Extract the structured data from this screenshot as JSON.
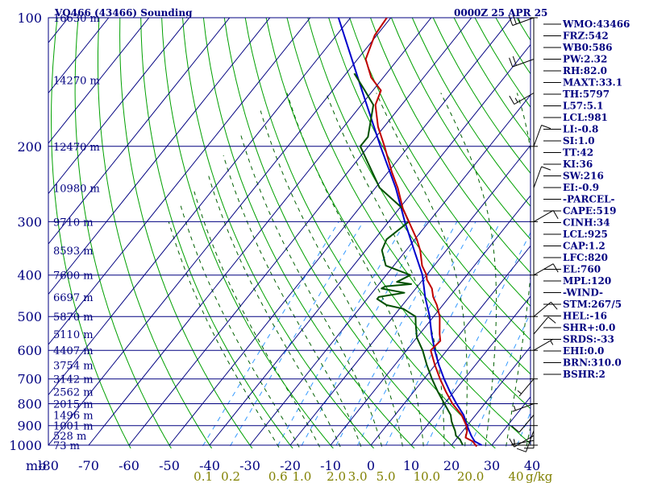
{
  "header": {
    "station": "VQ466 (43466) Sounding",
    "time": "0000Z 25 APR 25"
  },
  "colors": {
    "frame": "#000080",
    "dry_adiabat": "#00a000",
    "moist_adiabat": "#006000",
    "mixing_ratio": "#3399ff",
    "temperature": "#c00000",
    "dewpoint": "#005000",
    "parcel": "#0000cc",
    "mixing_label": "#808000"
  },
  "indices": [
    "WMO:43466",
    "FRZ:542",
    "WB0:586",
    "PW:2.32",
    "RH:82.0",
    "MAXT:33.1",
    "TH:5797",
    "L57:5.1",
    "LCL:981",
    "LI:-0.8",
    "SI:1.0",
    "TT:42",
    "KI:36",
    "SW:216",
    "EI:-0.9",
    "-PARCEL-",
    "CAPE:519",
    "CINH:34",
    "LCL:925",
    "CAP:1.2",
    "LFC:820",
    "EL:760",
    "MPL:120",
    "-WIND-",
    "STM:267/5",
    "HEL:-16",
    "SHR+:0.0",
    "SRDS:-33",
    "EHI:0.0",
    "BRN:310.0",
    "BSHR:2"
  ],
  "chart_data": {
    "type": "line",
    "title": "VQ466 (43466) Sounding",
    "subtitle": "0000Z 25 APR 25",
    "xlabel": "",
    "ylabel": "mb",
    "xlim": [
      -80,
      50
    ],
    "ylim": [
      1000,
      100
    ],
    "y_scale": "log",
    "grid": true,
    "pressure_ticks": [
      100,
      200,
      300,
      400,
      500,
      600,
      700,
      800,
      900,
      1000
    ],
    "pressure_tick_labels": [
      "100",
      "200",
      "300",
      "400",
      "500",
      "600",
      "700",
      "800",
      "900",
      "1000"
    ],
    "temperature_ticks": [
      -80,
      -70,
      -60,
      -50,
      -40,
      -30,
      -20,
      -10,
      0,
      10,
      20,
      30,
      40
    ],
    "temperature_tick_labels": [
      "-80",
      "-70",
      "-60",
      "-50",
      "-40",
      "-30",
      "-20",
      "-10",
      "0",
      "10",
      "20",
      "30",
      "40"
    ],
    "axis_corner_label": "mb",
    "mixing_ratio_ticks": [
      0.1,
      0.2,
      0.6,
      1.0,
      2.0,
      3.0,
      5.0,
      10.0,
      20.0,
      40.0
    ],
    "mixing_ratio_labels": [
      "0.1",
      "0.2",
      "0.6",
      "1.0",
      "2.0",
      "3.0",
      "5.0",
      "10.0",
      "20.0",
      "40"
    ],
    "mixing_ratio_unit": "g/kg",
    "height_labels": [
      {
        "p": 100,
        "label": "16630 m"
      },
      {
        "p": 140,
        "label": "14270 m"
      },
      {
        "p": 200,
        "label": "12470 m"
      },
      {
        "p": 250,
        "label": "10980 m"
      },
      {
        "p": 300,
        "label": "9710 m"
      },
      {
        "p": 350,
        "label": "8593 m"
      },
      {
        "p": 400,
        "label": "7600 m"
      },
      {
        "p": 450,
        "label": "6697 m"
      },
      {
        "p": 500,
        "label": "5870 m"
      },
      {
        "p": 550,
        "label": "5110 m"
      },
      {
        "p": 600,
        "label": "4407 m"
      },
      {
        "p": 650,
        "label": "3754 m"
      },
      {
        "p": 700,
        "label": "3142 m"
      },
      {
        "p": 750,
        "label": "2562 m"
      },
      {
        "p": 800,
        "label": "2015 m"
      },
      {
        "p": 850,
        "label": "1496 m"
      },
      {
        "p": 900,
        "label": "1001 m"
      },
      {
        "p": 950,
        "label": "528 m"
      },
      {
        "p": 1000,
        "label": "73 m"
      }
    ],
    "series": [
      {
        "key": "temperature",
        "p": [
          1007,
          1000,
          980,
          960,
          925,
          900,
          850,
          800,
          750,
          700,
          650,
          600,
          570,
          550,
          500,
          470,
          450,
          430,
          410,
          400,
          380,
          350,
          330,
          300,
          280,
          250,
          230,
          200,
          180,
          160,
          148,
          138,
          125,
          110,
          100
        ],
        "t": [
          26.5,
          26.0,
          24.5,
          22.0,
          21.0,
          19.8,
          16.5,
          12.0,
          8.0,
          4.0,
          0.0,
          -4.0,
          -3.5,
          -5.0,
          -8.5,
          -11.5,
          -14.0,
          -16.0,
          -19.0,
          -20.0,
          -23.0,
          -26.5,
          -29.5,
          -35.0,
          -39.0,
          -44.5,
          -49.0,
          -56.0,
          -61.5,
          -66.5,
          -68.0,
          -73.0,
          -78.0,
          -80.5,
          -81.0
        ]
      },
      {
        "key": "dewpoint",
        "p": [
          1000,
          970,
          950,
          925,
          900,
          880,
          850,
          800,
          750,
          700,
          650,
          600,
          560,
          520,
          500,
          480,
          470,
          455,
          450,
          440,
          430,
          425,
          420,
          415,
          400,
          380,
          350,
          330,
          300,
          280,
          250,
          200,
          190,
          160,
          148,
          135
        ],
        "t": [
          22.8,
          21.0,
          19.2,
          18.0,
          16.5,
          15.3,
          13.8,
          10.0,
          6.0,
          2.0,
          -2.0,
          -6.0,
          -10.0,
          -13.0,
          -14.5,
          -19.0,
          -24.0,
          -27.5,
          -27.5,
          -22.0,
          -28.5,
          -28.0,
          -22.0,
          -26.0,
          -24.0,
          -32.0,
          -36.0,
          -37.0,
          -35.0,
          -39.0,
          -49.0,
          -62.0,
          -62.0,
          -67.0,
          -72.0,
          -78.0
        ]
      },
      {
        "key": "parcel",
        "p": [
          1000,
          980,
          950,
          925,
          900,
          850,
          800,
          750,
          700,
          650,
          600,
          550,
          500,
          450,
          400,
          350,
          300,
          250,
          200,
          150,
          100
        ],
        "t": [
          27.5,
          25.0,
          23.0,
          21.5,
          20.0,
          17.0,
          13.0,
          9.0,
          5.0,
          1.0,
          -3.0,
          -7.0,
          -11.0,
          -16.0,
          -21.0,
          -28.0,
          -36.0,
          -45.0,
          -57.0,
          -72.0,
          -93.0
        ]
      }
    ],
    "wind_barbs": [
      {
        "p": 1000,
        "dir": 270,
        "kt": 5
      },
      {
        "p": 975,
        "dir": 260,
        "kt": 5
      },
      {
        "p": 950,
        "dir": 240,
        "kt": 10
      },
      {
        "p": 925,
        "dir": 200,
        "kt": 10
      },
      {
        "p": 900,
        "dir": 180,
        "kt": 10
      },
      {
        "p": 850,
        "dir": 220,
        "kt": 10
      },
      {
        "p": 800,
        "dir": 250,
        "kt": 5
      },
      {
        "p": 700,
        "dir": 220,
        "kt": 5
      },
      {
        "p": 600,
        "dir": 60,
        "kt": 5
      },
      {
        "p": 550,
        "dir": 40,
        "kt": 10
      },
      {
        "p": 500,
        "dir": 50,
        "kt": 10
      },
      {
        "p": 400,
        "dir": 60,
        "kt": 10
      },
      {
        "p": 300,
        "dir": 60,
        "kt": 10
      },
      {
        "p": 250,
        "dir": 20,
        "kt": 10
      },
      {
        "p": 200,
        "dir": 20,
        "kt": 10
      },
      {
        "p": 150,
        "dir": 240,
        "kt": 15
      },
      {
        "p": 125,
        "dir": 250,
        "kt": 20
      },
      {
        "p": 100,
        "dir": 250,
        "kt": 25
      }
    ]
  }
}
